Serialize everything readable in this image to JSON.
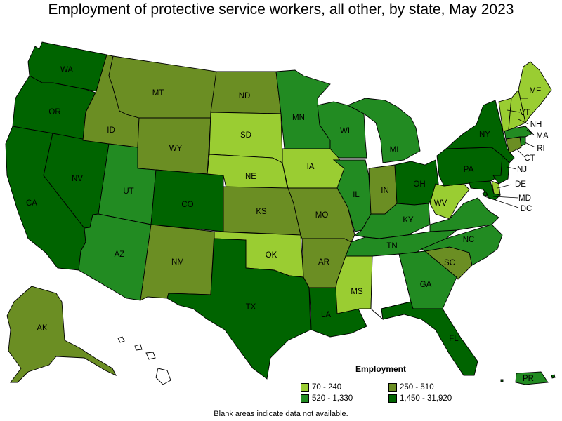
{
  "title": "Employment of protective service workers, all other, by state, May 2023",
  "legend": {
    "title": "Employment",
    "bins": [
      {
        "label": "70 - 240",
        "color": "#9acd32"
      },
      {
        "label": "250 - 510",
        "color": "#6b8e23"
      },
      {
        "label": "520 - 1,330",
        "color": "#228b22"
      },
      {
        "label": "1,450 - 31,920",
        "color": "#006400"
      }
    ]
  },
  "footnote": "Blank areas indicate data not available.",
  "states": {
    "WA": 3,
    "OR": 3,
    "CA": 3,
    "NV": 3,
    "ID": 1,
    "MT": 1,
    "WY": 1,
    "UT": 2,
    "AZ": 2,
    "CO": 3,
    "NM": 1,
    "ND": 1,
    "SD": 0,
    "NE": 0,
    "KS": 1,
    "OK": 0,
    "TX": 3,
    "MN": 2,
    "IA": 0,
    "MO": 1,
    "AR": 1,
    "LA": 3,
    "WI": 2,
    "IL": 2,
    "MI": 2,
    "IN": 1,
    "OH": 3,
    "KY": 2,
    "TN": 2,
    "MS": 0,
    "AL": -1,
    "GA": 2,
    "FL": 3,
    "SC": 1,
    "NC": 2,
    "VA": 2,
    "WV": 0,
    "PA": 3,
    "NY": 3,
    "ME": 0,
    "VT": 0,
    "NH": 0,
    "MA": 2,
    "RI": 2,
    "CT": 1,
    "NJ": 3,
    "DE": 0,
    "MD": 3,
    "DC": 3,
    "AK": 1,
    "HI": -1,
    "PR": 2
  }
}
